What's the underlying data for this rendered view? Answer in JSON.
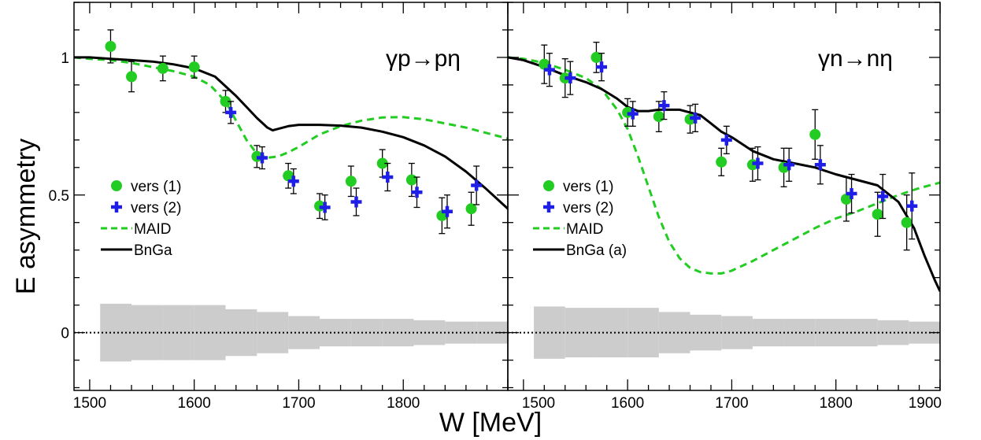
{
  "chart_data": {
    "type": "scatter",
    "ylabel": "E asymmetry",
    "xlabel": "W [MeV]",
    "xlim": [
      1485,
      1900
    ],
    "ylim": [
      -0.21,
      1.2
    ],
    "y_ticks": [
      "0",
      "0.5",
      "1"
    ],
    "panels": [
      {
        "label": "γp→pη",
        "x_ticks": [
          "1500",
          "1600",
          "1700",
          "1800"
        ],
        "legend_position": "middle-left",
        "legend": [
          "vers (1)",
          "vers (2)",
          "MAID",
          "BnGa"
        ],
        "series": [
          {
            "name": "vers (1)",
            "kind": "points",
            "color": "#22cc22",
            "x": [
              1520,
              1540,
              1570,
              1600,
              1630,
              1660,
              1690,
              1720,
              1750,
              1780,
              1808,
              1837,
              1865
            ],
            "y": [
              1.04,
              0.93,
              0.96,
              0.965,
              0.84,
              0.64,
              0.57,
              0.46,
              0.55,
              0.615,
              0.555,
              0.425,
              0.45
            ],
            "err": [
              0.06,
              0.055,
              0.045,
              0.04,
              0.04,
              0.04,
              0.045,
              0.045,
              0.055,
              0.05,
              0.06,
              0.065,
              0.06
            ]
          },
          {
            "name": "vers (2)",
            "kind": "points",
            "color": "#1e1ee6",
            "x": [
              1635,
              1665,
              1695,
              1725,
              1755,
              1785,
              1813,
              1842,
              1870
            ],
            "y": [
              0.8,
              0.635,
              0.55,
              0.455,
              0.475,
              0.565,
              0.51,
              0.44,
              0.535
            ],
            "err": [
              0.04,
              0.04,
              0.045,
              0.045,
              0.05,
              0.05,
              0.055,
              0.06,
              0.07
            ]
          },
          {
            "name": "MAID",
            "kind": "dashed",
            "color": "#22cc22",
            "x": [
              1485,
              1500,
              1520,
              1540,
              1560,
              1580,
              1600,
              1615,
              1630,
              1640,
              1650,
              1660,
              1670,
              1680,
              1690,
              1700,
              1720,
              1740,
              1760,
              1780,
              1800,
              1820,
              1840,
              1860,
              1880,
              1900
            ],
            "y": [
              1.0,
              0.995,
              0.99,
              0.98,
              0.965,
              0.95,
              0.93,
              0.9,
              0.84,
              0.77,
              0.7,
              0.65,
              0.635,
              0.64,
              0.655,
              0.675,
              0.72,
              0.75,
              0.77,
              0.782,
              0.783,
              0.775,
              0.76,
              0.745,
              0.725,
              0.705
            ]
          },
          {
            "name": "BnGa",
            "kind": "solid",
            "color": "#000000",
            "x": [
              1485,
              1500,
              1520,
              1540,
              1560,
              1580,
              1600,
              1620,
              1640,
              1650,
              1660,
              1670,
              1675,
              1680,
              1690,
              1700,
              1720,
              1740,
              1760,
              1780,
              1800,
              1820,
              1840,
              1860,
              1880,
              1900
            ],
            "y": [
              1.0,
              1.0,
              0.995,
              0.99,
              0.985,
              0.975,
              0.96,
              0.93,
              0.86,
              0.82,
              0.78,
              0.745,
              0.735,
              0.74,
              0.75,
              0.755,
              0.755,
              0.752,
              0.745,
              0.73,
              0.71,
              0.68,
              0.64,
              0.585,
              0.52,
              0.45
            ]
          },
          {
            "name": "systematic",
            "kind": "band",
            "color": "#cccccc",
            "edges": [
              1510,
              1540,
              1570,
              1600,
              1630,
              1660,
              1690,
              1720,
              1750,
              1780,
              1810,
              1840,
              1870,
              1900
            ],
            "half": [
              0.105,
              0.1,
              0.1,
              0.1,
              0.085,
              0.075,
              0.06,
              0.05,
              0.05,
              0.05,
              0.045,
              0.04,
              0.04
            ]
          }
        ]
      },
      {
        "label": "γn→nη",
        "x_ticks": [
          "1500",
          "1600",
          "1700",
          "1800",
          "1900"
        ],
        "legend_position": "middle-left",
        "legend": [
          "vers (1)",
          "vers (2)",
          "MAID",
          "BnGa (a)"
        ],
        "series": [
          {
            "name": "vers (1)",
            "kind": "points",
            "color": "#22cc22",
            "x": [
              1520,
              1540,
              1570,
              1600,
              1630,
              1660,
              1690,
              1720,
              1750,
              1780,
              1810,
              1840,
              1868
            ],
            "y": [
              0.975,
              0.925,
              1.0,
              0.8,
              0.785,
              0.775,
              0.62,
              0.61,
              0.6,
              0.72,
              0.485,
              0.43,
              0.4
            ],
            "err": [
              0.07,
              0.07,
              0.055,
              0.05,
              0.055,
              0.05,
              0.05,
              0.06,
              0.07,
              0.09,
              0.08,
              0.08,
              0.1
            ]
          },
          {
            "name": "vers (2)",
            "kind": "points",
            "color": "#1e1ee6",
            "x": [
              1525,
              1545,
              1575,
              1605,
              1635,
              1665,
              1695,
              1725,
              1755,
              1785,
              1815,
              1845,
              1873
            ],
            "y": [
              0.955,
              0.925,
              0.965,
              0.795,
              0.825,
              0.78,
              0.7,
              0.615,
              0.61,
              0.61,
              0.505,
              0.495,
              0.46
            ],
            "err": [
              0.06,
              0.06,
              0.05,
              0.045,
              0.05,
              0.05,
              0.05,
              0.06,
              0.06,
              0.07,
              0.07,
              0.08,
              0.12
            ]
          },
          {
            "name": "MAID",
            "kind": "dashed",
            "color": "#22cc22",
            "x": [
              1485,
              1500,
              1520,
              1540,
              1560,
              1575,
              1590,
              1600,
              1610,
              1620,
              1630,
              1640,
              1650,
              1660,
              1670,
              1680,
              1690,
              1700,
              1720,
              1740,
              1760,
              1780,
              1800,
              1820,
              1840,
              1860,
              1880,
              1900
            ],
            "y": [
              1.0,
              0.995,
              0.98,
              0.955,
              0.925,
              0.885,
              0.81,
              0.74,
              0.64,
              0.53,
              0.42,
              0.33,
              0.27,
              0.235,
              0.22,
              0.215,
              0.215,
              0.225,
              0.26,
              0.3,
              0.34,
              0.38,
              0.415,
              0.44,
              0.47,
              0.5,
              0.525,
              0.545
            ]
          },
          {
            "name": "BnGa (a)",
            "kind": "solid",
            "color": "#000000",
            "x": [
              1485,
              1500,
              1520,
              1540,
              1560,
              1575,
              1590,
              1600,
              1610,
              1620,
              1630,
              1640,
              1650,
              1660,
              1670,
              1680,
              1690,
              1700,
              1720,
              1740,
              1760,
              1780,
              1800,
              1820,
              1840,
              1860,
              1875,
              1885,
              1895,
              1900
            ],
            "y": [
              1.0,
              0.99,
              0.965,
              0.935,
              0.91,
              0.885,
              0.85,
              0.82,
              0.805,
              0.805,
              0.81,
              0.81,
              0.81,
              0.8,
              0.79,
              0.76,
              0.73,
              0.71,
              0.66,
              0.63,
              0.615,
              0.6,
              0.575,
              0.555,
              0.535,
              0.475,
              0.38,
              0.28,
              0.19,
              0.15
            ]
          },
          {
            "name": "systematic",
            "kind": "band",
            "color": "#cccccc",
            "edges": [
              1510,
              1540,
              1570,
              1600,
              1630,
              1660,
              1690,
              1720,
              1750,
              1780,
              1810,
              1840,
              1870,
              1900
            ],
            "half": [
              0.095,
              0.09,
              0.09,
              0.09,
              0.075,
              0.065,
              0.06,
              0.05,
              0.05,
              0.05,
              0.05,
              0.045,
              0.04
            ]
          }
        ]
      }
    ]
  }
}
